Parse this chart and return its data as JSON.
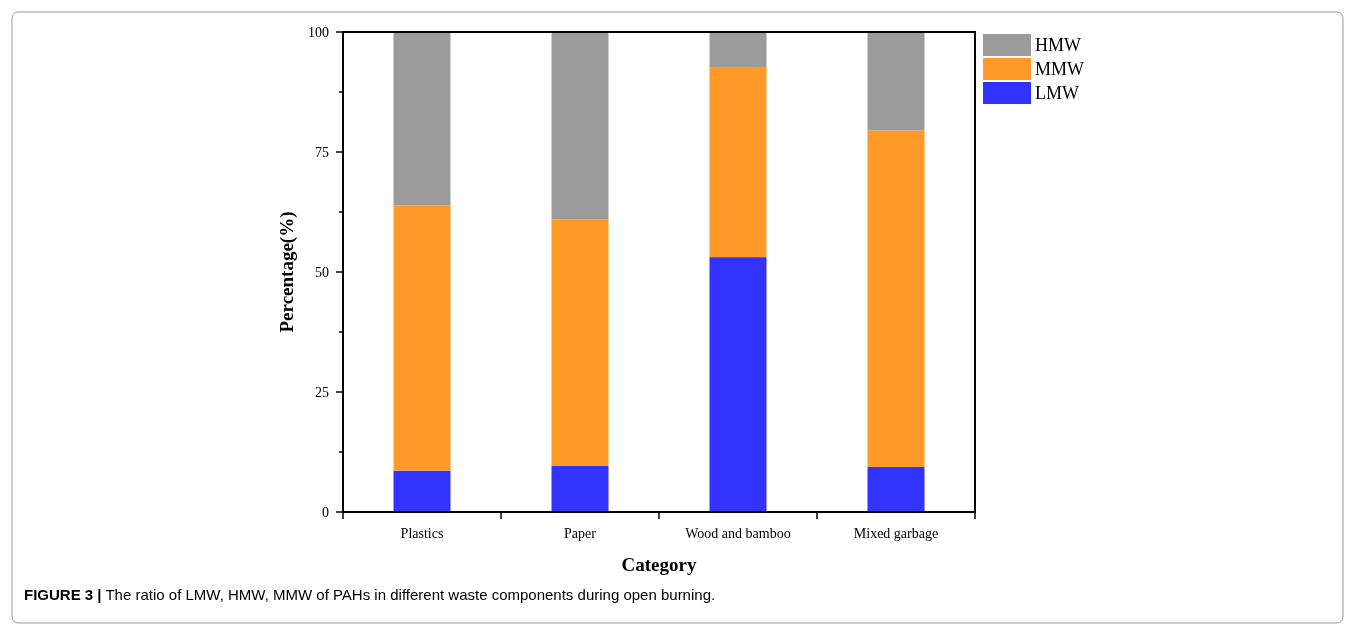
{
  "chart_data": {
    "type": "bar",
    "stacked": true,
    "categories": [
      "Plastics",
      "Paper",
      "Wood and bamboo",
      "Mixed garbage"
    ],
    "series": [
      {
        "name": "LMW",
        "color": "#3333ff",
        "values": [
          8.6,
          9.6,
          53.1,
          9.4
        ]
      },
      {
        "name": "MMW",
        "color": "#ff9a28",
        "values": [
          55.3,
          51.4,
          39.6,
          70.1
        ]
      },
      {
        "name": "HMW",
        "color": "#9b9b9b",
        "values": [
          36.1,
          39.0,
          7.3,
          20.5
        ]
      }
    ],
    "xlabel": "Category",
    "ylabel": "Percentage(%)",
    "ylim": [
      0,
      100
    ],
    "yticks": [
      0,
      {
        "value": 12.5,
        "label": null
      },
      25,
      {
        "value": 37.5,
        "label": null
      },
      50,
      {
        "value": 62.5,
        "label": null
      },
      75,
      {
        "value": 87.5,
        "label": null
      },
      100
    ],
    "grid": false,
    "legend": "top right",
    "annotations": [
      "FIGURE 3 | The ratio of LMW, HMW, MMW of PAHs in different waste components during open burning."
    ]
  }
}
